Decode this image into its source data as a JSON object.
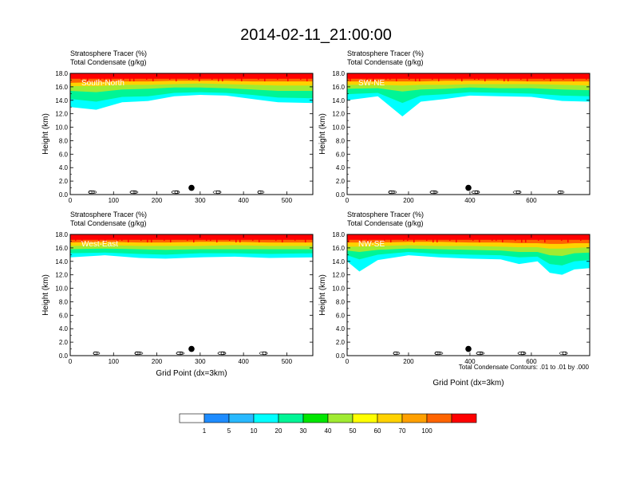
{
  "title": "2014-02-11_21:00:00",
  "footnote": "Total Condensate Contours: .01 to .01 by .000",
  "colorbar": {
    "labels": [
      "1",
      "5",
      "10",
      "20",
      "30",
      "40",
      "50",
      "60",
      "70",
      "100"
    ],
    "colors": [
      "#ffffff",
      "#1e8cff",
      "#28b9ff",
      "#00ffff",
      "#00f596",
      "#00e600",
      "#a0eb32",
      "#ffff00",
      "#ffd200",
      "#ffa000",
      "#ff6400",
      "#ff0000"
    ]
  },
  "chart_data": [
    {
      "type": "heatmap",
      "name": "South-North",
      "subtitle_line1": "Stratosphere Tracer   (%)",
      "subtitle_line2": "Total Condensate   (g/kg)",
      "ylabel": "Height (km)",
      "xlabel": "",
      "xlim": [
        0,
        560
      ],
      "ylim": [
        0,
        18
      ],
      "xticks": [
        0,
        100,
        200,
        300,
        400,
        500
      ],
      "yticks": [
        "0.0",
        "2.0",
        "4.0",
        "6.0",
        "8.0",
        "10.0",
        "12.0",
        "14.0",
        "16.0",
        "18.0"
      ],
      "marker_x": 280,
      "tracer_layers": [
        {
          "color_index": 3,
          "x": [
            0,
            60,
            120,
            180,
            240,
            300,
            360,
            420,
            480,
            560
          ],
          "bottom": [
            13.0,
            12.6,
            13.7,
            13.9,
            14.6,
            14.8,
            14.7,
            14.2,
            13.7,
            13.6
          ]
        },
        {
          "color_index": 4,
          "x": [
            0,
            60,
            120,
            180,
            240,
            300,
            360,
            420,
            480,
            560
          ],
          "bottom": [
            14.2,
            13.8,
            14.5,
            14.6,
            15.1,
            15.2,
            15.1,
            14.8,
            14.4,
            14.3
          ]
        },
        {
          "color_index": 6,
          "x": [
            0,
            60,
            120,
            180,
            240,
            300,
            360,
            420,
            480,
            560
          ],
          "bottom": [
            15.4,
            15.2,
            15.6,
            15.7,
            15.9,
            15.9,
            15.8,
            15.6,
            15.4,
            15.4
          ]
        },
        {
          "color_index": 8,
          "x": [
            0,
            60,
            120,
            180,
            240,
            300,
            360,
            420,
            480,
            560
          ],
          "bottom": [
            16.1,
            16.1,
            16.3,
            16.3,
            16.4,
            16.5,
            16.4,
            16.3,
            16.2,
            16.2
          ]
        },
        {
          "color_index": 10,
          "x": [
            0,
            60,
            120,
            180,
            240,
            300,
            360,
            420,
            480,
            560
          ],
          "bottom": [
            16.6,
            16.7,
            16.8,
            16.8,
            16.9,
            16.9,
            16.9,
            16.8,
            16.8,
            16.8
          ]
        }
      ]
    },
    {
      "type": "heatmap",
      "name": "SW-NE",
      "subtitle_line1": "Stratosphere Tracer   (%)",
      "subtitle_line2": "Total Condensate   (g/kg)",
      "ylabel": "Height (km)",
      "xlabel": "",
      "xlim": [
        0,
        790
      ],
      "ylim": [
        0,
        18
      ],
      "xticks": [
        0,
        200,
        400,
        600
      ],
      "yticks": [
        "0.0",
        "2.0",
        "4.0",
        "6.0",
        "8.0",
        "10.0",
        "12.0",
        "14.0",
        "16.0",
        "18.0"
      ],
      "marker_x": 395,
      "tracer_layers": [
        {
          "color_index": 3,
          "x": [
            0,
            100,
            180,
            240,
            320,
            400,
            500,
            600,
            700,
            790
          ],
          "bottom": [
            14.0,
            14.6,
            11.6,
            13.8,
            14.2,
            14.7,
            14.6,
            14.5,
            13.9,
            13.8
          ]
        },
        {
          "color_index": 4,
          "x": [
            0,
            100,
            180,
            240,
            320,
            400,
            500,
            600,
            700,
            790
          ],
          "bottom": [
            14.9,
            15.1,
            13.6,
            14.7,
            14.9,
            15.2,
            15.1,
            15.0,
            14.7,
            14.6
          ]
        },
        {
          "color_index": 6,
          "x": [
            0,
            100,
            180,
            240,
            320,
            400,
            500,
            600,
            700,
            790
          ],
          "bottom": [
            15.7,
            15.8,
            15.3,
            15.6,
            15.7,
            15.9,
            15.8,
            15.8,
            15.6,
            15.5
          ]
        },
        {
          "color_index": 8,
          "x": [
            0,
            100,
            180,
            240,
            320,
            400,
            500,
            600,
            700,
            790
          ],
          "bottom": [
            16.3,
            16.3,
            16.2,
            16.3,
            16.3,
            16.4,
            16.4,
            16.4,
            16.3,
            16.2
          ]
        },
        {
          "color_index": 10,
          "x": [
            0,
            100,
            180,
            240,
            320,
            400,
            500,
            600,
            700,
            790
          ],
          "bottom": [
            16.8,
            16.8,
            16.8,
            16.8,
            16.9,
            16.9,
            16.9,
            16.8,
            16.8,
            16.8
          ]
        }
      ]
    },
    {
      "type": "heatmap",
      "name": "West-East",
      "subtitle_line1": "Stratosphere Tracer   (%)",
      "subtitle_line2": "Total Condensate   (g/kg)",
      "ylabel": "Height (km)",
      "xlabel": "Grid Point (dx=3km)",
      "xlim": [
        0,
        560
      ],
      "ylim": [
        0,
        18
      ],
      "xticks": [
        0,
        100,
        200,
        300,
        400,
        500
      ],
      "yticks": [
        "0.0",
        "2.0",
        "4.0",
        "6.0",
        "8.0",
        "10.0",
        "12.0",
        "14.0",
        "16.0",
        "18.0"
      ],
      "marker_x": 280,
      "tracer_layers": [
        {
          "color_index": 3,
          "x": [
            0,
            80,
            160,
            220,
            300,
            380,
            460,
            560
          ],
          "bottom": [
            14.6,
            14.9,
            14.5,
            14.4,
            14.6,
            14.7,
            14.5,
            14.6
          ]
        },
        {
          "color_index": 4,
          "x": [
            0,
            80,
            160,
            220,
            300,
            380,
            460,
            560
          ],
          "bottom": [
            15.2,
            15.3,
            15.1,
            15.0,
            15.2,
            15.2,
            15.1,
            15.2
          ]
        },
        {
          "color_index": 6,
          "x": [
            0,
            80,
            160,
            220,
            300,
            380,
            460,
            560
          ],
          "bottom": [
            15.8,
            15.9,
            15.8,
            15.7,
            15.8,
            15.8,
            15.8,
            15.8
          ]
        },
        {
          "color_index": 8,
          "x": [
            0,
            80,
            160,
            220,
            300,
            380,
            460,
            560
          ],
          "bottom": [
            16.3,
            16.4,
            16.3,
            16.3,
            16.3,
            16.4,
            16.3,
            16.3
          ]
        },
        {
          "color_index": 10,
          "x": [
            0,
            80,
            160,
            220,
            300,
            380,
            460,
            560
          ],
          "bottom": [
            16.8,
            16.9,
            16.8,
            16.8,
            16.9,
            16.9,
            16.8,
            16.8
          ]
        }
      ]
    },
    {
      "type": "heatmap",
      "name": "NW-SE",
      "subtitle_line1": "Stratosphere Tracer   (%)",
      "subtitle_line2": "Total Condensate   (g/kg)",
      "ylabel": "Height (km)",
      "xlabel": "Grid Point (dx=3km)",
      "xlim": [
        0,
        790
      ],
      "ylim": [
        0,
        18
      ],
      "xticks": [
        0,
        200,
        400,
        600
      ],
      "yticks": [
        "0.0",
        "2.0",
        "4.0",
        "6.0",
        "8.0",
        "10.0",
        "12.0",
        "14.0",
        "16.0",
        "18.0"
      ],
      "marker_x": 395,
      "tracer_layers": [
        {
          "color_index": 3,
          "x": [
            0,
            40,
            100,
            200,
            300,
            400,
            500,
            560,
            620,
            660,
            700,
            740,
            790
          ],
          "bottom": [
            14.0,
            12.5,
            14.2,
            14.9,
            14.6,
            14.4,
            14.3,
            13.6,
            14.0,
            12.3,
            12.0,
            12.8,
            13.0
          ]
        },
        {
          "color_index": 4,
          "x": [
            0,
            40,
            100,
            200,
            300,
            400,
            500,
            560,
            620,
            660,
            700,
            740,
            790
          ],
          "bottom": [
            14.9,
            14.3,
            15.0,
            15.4,
            15.1,
            15.0,
            14.9,
            14.6,
            14.7,
            13.6,
            13.4,
            14.0,
            14.2
          ]
        },
        {
          "color_index": 6,
          "x": [
            0,
            40,
            100,
            200,
            300,
            400,
            500,
            560,
            620,
            660,
            700,
            740,
            790
          ],
          "bottom": [
            15.6,
            15.4,
            15.7,
            15.9,
            15.8,
            15.7,
            15.6,
            15.4,
            15.4,
            14.9,
            14.8,
            15.2,
            15.3
          ]
        },
        {
          "color_index": 8,
          "x": [
            0,
            40,
            100,
            200,
            300,
            400,
            500,
            560,
            620,
            660,
            700,
            740,
            790
          ],
          "bottom": [
            16.2,
            16.2,
            16.3,
            16.4,
            16.3,
            16.3,
            16.2,
            16.1,
            16.1,
            15.9,
            15.9,
            16.0,
            16.1
          ]
        },
        {
          "color_index": 10,
          "x": [
            0,
            40,
            100,
            200,
            300,
            400,
            500,
            560,
            620,
            660,
            700,
            740,
            790
          ],
          "bottom": [
            16.8,
            16.8,
            16.8,
            16.9,
            16.9,
            16.8,
            16.8,
            16.7,
            16.7,
            16.6,
            16.6,
            16.7,
            16.7
          ]
        }
      ]
    }
  ]
}
